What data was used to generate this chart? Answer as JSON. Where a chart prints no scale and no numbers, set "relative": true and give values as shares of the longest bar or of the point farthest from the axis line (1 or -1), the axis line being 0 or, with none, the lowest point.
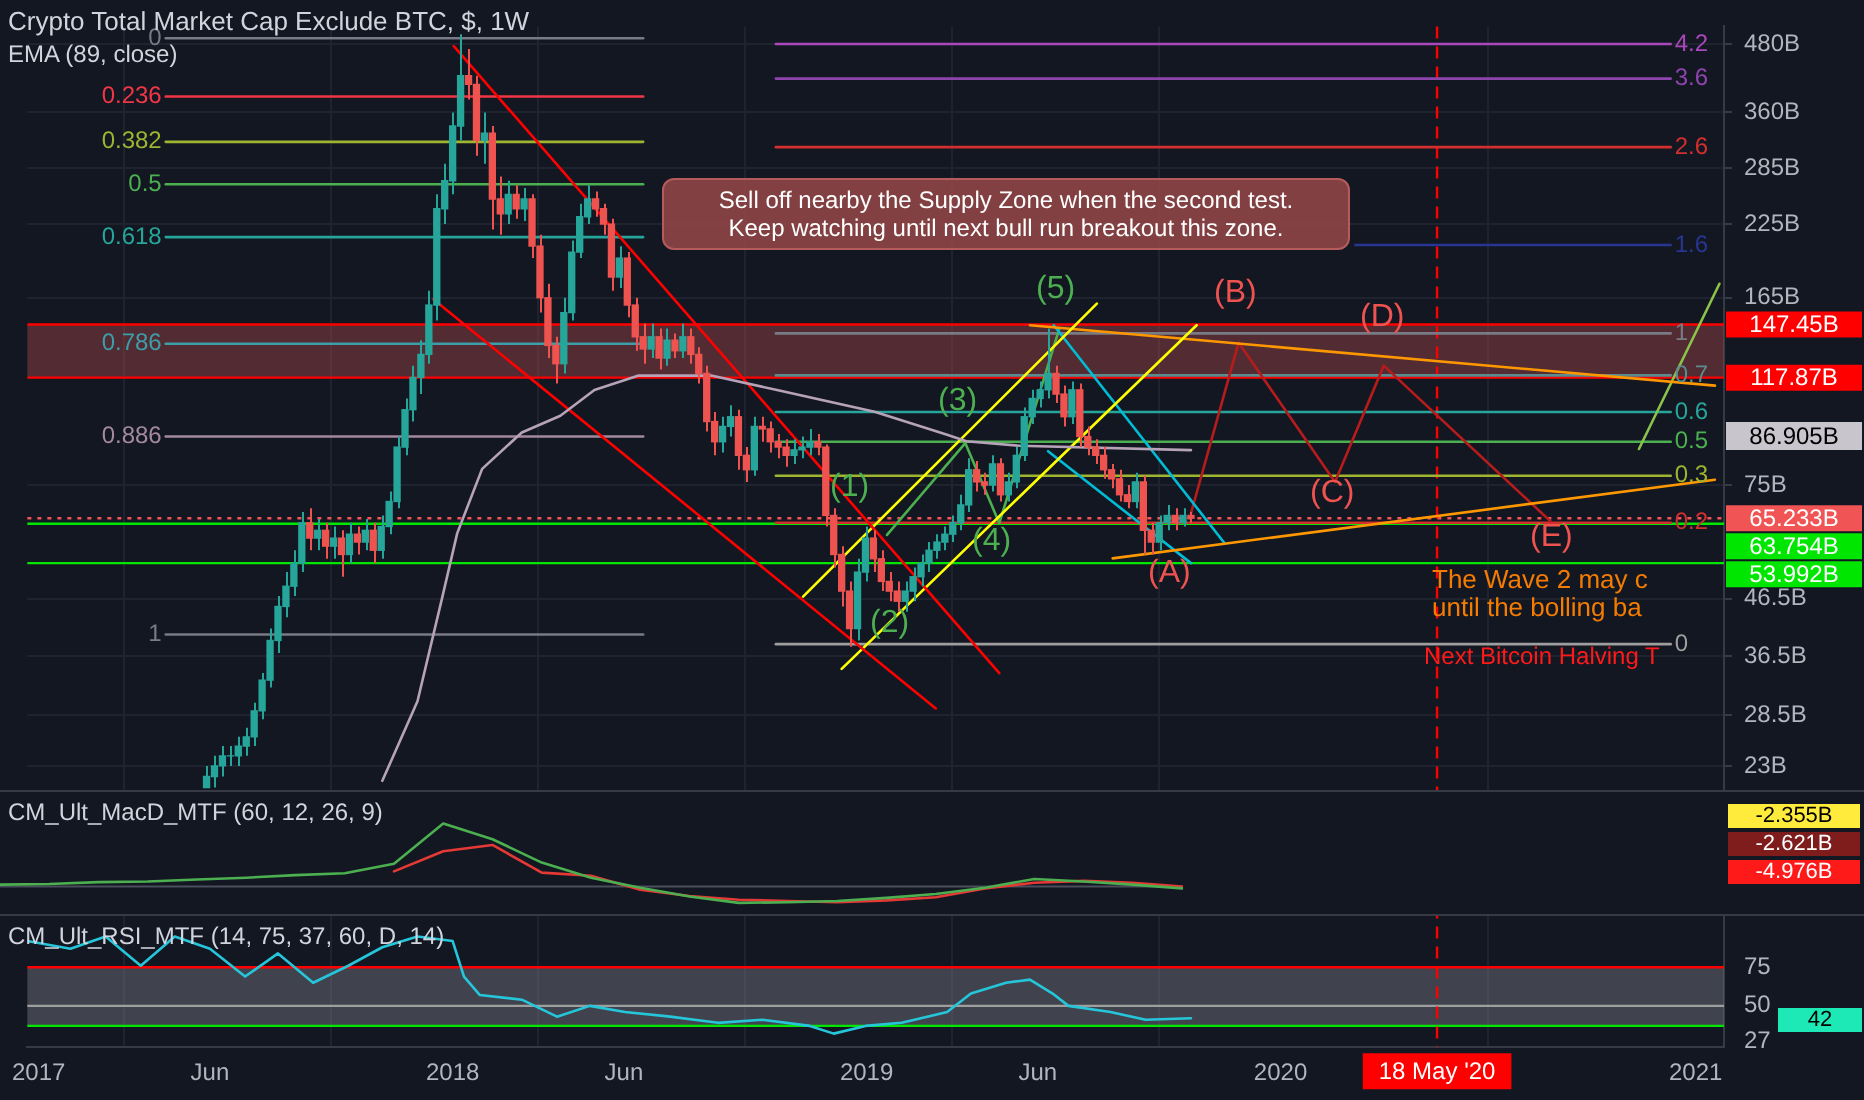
{
  "chart_data": [
    {
      "type": "candlestick",
      "title": "Crypto Total Market Cap Exclude BTC, $, 1W",
      "subtitle": "EMA (89, close)",
      "y2label": "CM_Ult_RSI_MTF (14, 75, 37, 60, D, 14)",
      "log": true,
      "ylim": [
        7.04,
        517
      ],
      "yticks": [
        {
          "value": 23,
          "label": "23B"
        },
        {
          "value": 28.5,
          "label": "28.5B"
        },
        {
          "value": 36.5,
          "label": "36.5B"
        },
        {
          "value": 46.5,
          "label": "46.5B"
        },
        {
          "value": 75,
          "label": "75B"
        },
        {
          "value": 165,
          "label": "165B"
        },
        {
          "value": 225,
          "label": "225B"
        },
        {
          "value": 285,
          "label": "285B"
        },
        {
          "value": 360,
          "label": "360B"
        },
        {
          "value": 480,
          "label": "480B"
        }
      ],
      "y2lim": [
        23.2,
        685
      ],
      "y2ticks": [
        27,
        50,
        75
      ],
      "xlim": [
        "2016-12-22",
        "2021-01-26"
      ],
      "xticks": [
        {
          "value": "2017",
          "label": "2017"
        },
        {
          "value": "2017-06",
          "label": "Jun"
        },
        {
          "value": "2018",
          "label": "2018"
        },
        {
          "value": "2018-06",
          "label": "Jun"
        },
        {
          "value": "2019",
          "label": "2019"
        },
        {
          "value": "2019-06",
          "label": "Jun"
        },
        {
          "value": "2020",
          "label": "2020"
        },
        {
          "value": "2021",
          "label": "2021"
        }
      ],
      "grid": true,
      "x": [
        "2017-05-29",
        "2017-06-05",
        "2017-06-12",
        "2017-06-19",
        "2017-06-26",
        "2017-07-03",
        "2017-07-10",
        "2017-07-17",
        "2017-07-24",
        "2017-07-31",
        "2017-08-07",
        "2017-08-14",
        "2017-08-21",
        "2017-08-28",
        "2017-09-04",
        "2017-09-11",
        "2017-09-18",
        "2017-09-25",
        "2017-10-02",
        "2017-10-09",
        "2017-10-16",
        "2017-10-23",
        "2017-10-30",
        "2017-11-06",
        "2017-11-13",
        "2017-11-20",
        "2017-11-27",
        "2017-12-04",
        "2017-12-11",
        "2017-12-18",
        "2017-12-25",
        "2018-01-01",
        "2018-01-08",
        "2018-01-15",
        "2018-01-22",
        "2018-01-29",
        "2018-02-05",
        "2018-02-12",
        "2018-02-19",
        "2018-02-26",
        "2018-03-05",
        "2018-03-12",
        "2018-03-19",
        "2018-03-26",
        "2018-04-02",
        "2018-04-09",
        "2018-04-16",
        "2018-04-23",
        "2018-04-30",
        "2018-05-07",
        "2018-05-14",
        "2018-05-21",
        "2018-05-28",
        "2018-06-04",
        "2018-06-11",
        "2018-06-18",
        "2018-06-25",
        "2018-07-02",
        "2018-07-09",
        "2018-07-16",
        "2018-07-23",
        "2018-07-30",
        "2018-08-06",
        "2018-08-13",
        "2018-08-20",
        "2018-08-27",
        "2018-09-03",
        "2018-09-10",
        "2018-09-17",
        "2018-09-24",
        "2018-10-01",
        "2018-10-08",
        "2018-10-15",
        "2018-10-22",
        "2018-10-29",
        "2018-11-05",
        "2018-11-12",
        "2018-11-19",
        "2018-11-26",
        "2018-12-03",
        "2018-12-10",
        "2018-12-17",
        "2018-12-24",
        "2018-12-31",
        "2019-01-07",
        "2019-01-14",
        "2019-01-21",
        "2019-01-28",
        "2019-02-04",
        "2019-02-11",
        "2019-02-18",
        "2019-02-25",
        "2019-03-04",
        "2019-03-11",
        "2019-03-18",
        "2019-03-25",
        "2019-04-01",
        "2019-04-08",
        "2019-04-15",
        "2019-04-22",
        "2019-04-29",
        "2019-05-06",
        "2019-05-13",
        "2019-05-20",
        "2019-05-27",
        "2019-06-03",
        "2019-06-10",
        "2019-06-17",
        "2019-06-24",
        "2019-07-01",
        "2019-07-08",
        "2019-07-15",
        "2019-07-22",
        "2019-07-29",
        "2019-08-05",
        "2019-08-12",
        "2019-08-19",
        "2019-08-26",
        "2019-09-02",
        "2019-09-09",
        "2019-09-16",
        "2019-09-23",
        "2019-09-30",
        "2019-10-07",
        "2019-10-14"
      ],
      "ohlc": [
        [
          21,
          23,
          21,
          22
        ],
        [
          22,
          24,
          21,
          23
        ],
        [
          23,
          25,
          22,
          24
        ],
        [
          24,
          25,
          23,
          24
        ],
        [
          24,
          26,
          23,
          25
        ],
        [
          25,
          27,
          24,
          26
        ],
        [
          26,
          30,
          25,
          29
        ],
        [
          29,
          34,
          28,
          33
        ],
        [
          33,
          41,
          32,
          39
        ],
        [
          39,
          47,
          37,
          45
        ],
        [
          45,
          52,
          43,
          49
        ],
        [
          49,
          57,
          47,
          54
        ],
        [
          54,
          67,
          52,
          64
        ],
        [
          64,
          68,
          57,
          60
        ],
        [
          60,
          65,
          57,
          62
        ],
        [
          62,
          64,
          55,
          58
        ],
        [
          58,
          63,
          55,
          60
        ],
        [
          60,
          62,
          51,
          56
        ],
        [
          56,
          64,
          54,
          61
        ],
        [
          61,
          63,
          56,
          59
        ],
        [
          59,
          65,
          57,
          62
        ],
        [
          62,
          64,
          54,
          57
        ],
        [
          57,
          66,
          55,
          63
        ],
        [
          63,
          73,
          61,
          70
        ],
        [
          70,
          92,
          68,
          88
        ],
        [
          88,
          108,
          85,
          103
        ],
        [
          103,
          124,
          98,
          118
        ],
        [
          118,
          138,
          110,
          130
        ],
        [
          130,
          170,
          125,
          160
        ],
        [
          160,
          255,
          150,
          240
        ],
        [
          240,
          290,
          225,
          270
        ],
        [
          270,
          360,
          255,
          340
        ],
        [
          340,
          500,
          320,
          420
        ],
        [
          420,
          470,
          380,
          405
        ],
        [
          405,
          420,
          300,
          320
        ],
        [
          320,
          360,
          290,
          330
        ],
        [
          330,
          340,
          220,
          250
        ],
        [
          250,
          275,
          215,
          235
        ],
        [
          235,
          270,
          225,
          255
        ],
        [
          255,
          265,
          230,
          240
        ],
        [
          240,
          262,
          228,
          250
        ],
        [
          250,
          255,
          195,
          205
        ],
        [
          205,
          215,
          155,
          165
        ],
        [
          165,
          175,
          128,
          135
        ],
        [
          135,
          140,
          115,
          125
        ],
        [
          125,
          165,
          120,
          155
        ],
        [
          155,
          210,
          150,
          200
        ],
        [
          200,
          245,
          195,
          232
        ],
        [
          232,
          265,
          225,
          250
        ],
        [
          250,
          258,
          232,
          240
        ],
        [
          240,
          245,
          215,
          225
        ],
        [
          225,
          230,
          170,
          180
        ],
        [
          180,
          205,
          172,
          195
        ],
        [
          195,
          200,
          152,
          160
        ],
        [
          160,
          165,
          132,
          140
        ],
        [
          140,
          148,
          125,
          133
        ],
        [
          133,
          148,
          128,
          140
        ],
        [
          140,
          145,
          122,
          128
        ],
        [
          128,
          145,
          124,
          138
        ],
        [
          138,
          142,
          128,
          132
        ],
        [
          132,
          148,
          128,
          140
        ],
        [
          140,
          145,
          125,
          130
        ],
        [
          130,
          134,
          115,
          120
        ],
        [
          120,
          124,
          94,
          98
        ],
        [
          98,
          102,
          85,
          90
        ],
        [
          90,
          100,
          86,
          96
        ],
        [
          96,
          105,
          92,
          100
        ],
        [
          100,
          103,
          80,
          85
        ],
        [
          85,
          88,
          76,
          80
        ],
        [
          80,
          100,
          78,
          96
        ],
        [
          96,
          100,
          90,
          95
        ],
        [
          95,
          98,
          86,
          90
        ],
        [
          90,
          93,
          84,
          88
        ],
        [
          88,
          91,
          81,
          85
        ],
        [
          85,
          91,
          82,
          87
        ],
        [
          87,
          92,
          84,
          88
        ],
        [
          88,
          95,
          85,
          90
        ],
        [
          90,
          93,
          85,
          88
        ],
        [
          88,
          89,
          63,
          66
        ],
        [
          66,
          68,
          53,
          56
        ],
        [
          56,
          58,
          45,
          48
        ],
        [
          48,
          50,
          38,
          41
        ],
        [
          41,
          55,
          39,
          52
        ],
        [
          52,
          63,
          50,
          60
        ],
        [
          60,
          62,
          52,
          55
        ],
        [
          55,
          57,
          48,
          50
        ],
        [
          50,
          52,
          46,
          48
        ],
        [
          48,
          50,
          44,
          46
        ],
        [
          46,
          50,
          44,
          48
        ],
        [
          48,
          53,
          46,
          51
        ],
        [
          51,
          56,
          49,
          54
        ],
        [
          54,
          59,
          52,
          57
        ],
        [
          57,
          61,
          55,
          59
        ],
        [
          59,
          63,
          57,
          61
        ],
        [
          61,
          66,
          59,
          64
        ],
        [
          64,
          72,
          62,
          69
        ],
        [
          69,
          84,
          67,
          80
        ],
        [
          80,
          83,
          73,
          76
        ],
        [
          76,
          79,
          72,
          75
        ],
        [
          75,
          85,
          73,
          82
        ],
        [
          82,
          84,
          70,
          72
        ],
        [
          72,
          79,
          70,
          76
        ],
        [
          76,
          88,
          74,
          85
        ],
        [
          85,
          104,
          83,
          100
        ],
        [
          100,
          112,
          97,
          108
        ],
        [
          108,
          116,
          104,
          112
        ],
        [
          112,
          145,
          108,
          120
        ],
        [
          120,
          124,
          106,
          110
        ],
        [
          110,
          114,
          96,
          100
        ],
        [
          100,
          116,
          97,
          112
        ],
        [
          112,
          115,
          88,
          92
        ],
        [
          92,
          96,
          85,
          88
        ],
        [
          88,
          91,
          82,
          85
        ],
        [
          85,
          88,
          77,
          80
        ],
        [
          80,
          82,
          74,
          77
        ],
        [
          77,
          80,
          70,
          72
        ],
        [
          72,
          75,
          68,
          70
        ],
        [
          70,
          79,
          68,
          76
        ],
        [
          76,
          78,
          56,
          62
        ],
        [
          62,
          64,
          56,
          59
        ],
        [
          59,
          66,
          57,
          64
        ],
        [
          64,
          69,
          62,
          66
        ],
        [
          66,
          68,
          62,
          64
        ],
        [
          64,
          68,
          63,
          66
        ],
        [
          66,
          67,
          64,
          65.233
        ]
      ],
      "series": [
        {
          "type": "line",
          "color": "#b7a3b8",
          "x": [
            "2017-10-31",
            "2017-12-01",
            "2017-12-23",
            "2018-01-05",
            "2018-01-27",
            "2018-03-03",
            "2018-04-06",
            "2018-05-06",
            "2018-06-14",
            "2018-08-17",
            "2018-10-14",
            "2019-01-08",
            "2019-03-13",
            "2019-03-30",
            "2019-05-16",
            "2019-10-14"
          ],
          "values": [
            21.6,
            30.2,
            46.9,
            61.2,
            80.3,
            93.6,
            100.4,
            111.9,
            118.9,
            118.9,
            111.9,
            102.1,
            92.7,
            90.2,
            88.5,
            86.905
          ]
        },
        {
          "type": "line",
          "color": "#ff0000",
          "x": [
            "2018-01-02",
            "2019-04-28"
          ],
          "values": [
            476,
            34
          ]
        },
        {
          "type": "line",
          "color": "#ff0000",
          "x": [
            "2017-12-15",
            "2019-03-03"
          ],
          "values": [
            164,
            29.3
          ]
        },
        {
          "type": "line",
          "color": "#ffff00",
          "x": [
            "2018-11-06",
            "2019-07-23"
          ],
          "values": [
            46.9,
            161
          ]
        },
        {
          "type": "line",
          "color": "#ffff00",
          "x": [
            "2018-12-10",
            "2019-10-19"
          ],
          "values": [
            34.6,
            147
          ]
        },
        {
          "type": "line",
          "color": "#ff9800",
          "x": [
            "2019-05-25",
            "2021-01-18"
          ],
          "values": [
            147,
            114
          ]
        },
        {
          "type": "line",
          "color": "#ff9800",
          "x": [
            "2019-08-06",
            "2021-01-18"
          ],
          "values": [
            55.1,
            76.7
          ]
        },
        {
          "type": "line",
          "color": "#00bcd4",
          "x": [
            "2019-06-15",
            "2019-11-13"
          ],
          "values": [
            147,
            58.6
          ]
        },
        {
          "type": "line",
          "color": "#00bcd4",
          "x": [
            "2019-06-10",
            "2019-10-14"
          ],
          "values": [
            86.5,
            54
          ]
        },
        {
          "type": "line",
          "color": "#4caf50",
          "x": [
            "2019-01-19",
            "2019-03-29",
            "2019-04-28",
            "2019-06-20"
          ],
          "values": [
            60.8,
            89.5,
            63.9,
            145
          ]
        },
        {
          "type": "line",
          "color": "#b71c1c",
          "x": [
            "2019-10-14",
            "2019-11-25",
            "2020-02-18",
            "2020-04-01",
            "2020-08-26"
          ],
          "values": [
            66.6,
            136.6,
            76,
            124,
            64.4
          ]
        },
        {
          "type": "line",
          "color": "#8bc34a",
          "x": [
            "2020-11-12",
            "2021-01-22"
          ],
          "values": [
            87.3,
            175
          ]
        },
        {
          "type": "line",
          "name": "0",
          "color": "#787b86",
          "x": [
            "2017-04-23",
            "2018-06-18"
          ],
          "values": [
            492,
            492
          ]
        },
        {
          "type": "line",
          "name": "0.236",
          "color": "#f23645",
          "x": [
            "2017-04-23",
            "2018-06-18"
          ],
          "values": [
            385,
            385
          ]
        },
        {
          "type": "line",
          "name": "0.382",
          "color": "#9fb530",
          "x": [
            "2017-04-23",
            "2018-06-18"
          ],
          "values": [
            318,
            318
          ]
        },
        {
          "type": "line",
          "name": "0.5",
          "color": "#4caf50",
          "x": [
            "2017-04-23",
            "2018-06-18"
          ],
          "values": [
            266,
            266
          ]
        },
        {
          "type": "line",
          "name": "0.618",
          "color": "#26a69a",
          "x": [
            "2017-04-23",
            "2018-06-18"
          ],
          "values": [
            213,
            213
          ]
        },
        {
          "type": "line",
          "name": "0.786",
          "color": "#3d9da8",
          "x": [
            "2017-04-23",
            "2018-06-18"
          ],
          "values": [
            136,
            136
          ]
        },
        {
          "type": "line",
          "name": "0.886",
          "color": "#a3899f",
          "x": [
            "2017-04-23",
            "2018-06-18"
          ],
          "values": [
            92,
            92
          ]
        },
        {
          "type": "line",
          "name": "1",
          "color": "#787b86",
          "x": [
            "2017-04-23",
            "2018-06-18"
          ],
          "values": [
            40,
            40
          ]
        },
        {
          "type": "line",
          "name": "4.2",
          "color": "#ab47bc",
          "x": [
            "2018-10-13",
            "2020-12-10"
          ],
          "values": [
            480,
            480
          ]
        },
        {
          "type": "line",
          "name": "3.6",
          "color": "#8e44ad",
          "x": [
            "2018-10-13",
            "2020-12-10"
          ],
          "values": [
            415,
            415
          ]
        },
        {
          "type": "line",
          "name": "2.6",
          "color": "#d32f2f",
          "x": [
            "2018-10-13",
            "2020-12-10"
          ],
          "values": [
            311,
            311
          ]
        },
        {
          "type": "line",
          "name": "1.6",
          "color": "#283593",
          "x": [
            "2020-03-07",
            "2020-12-10"
          ],
          "values": [
            206,
            206
          ]
        },
        {
          "type": "line",
          "name": "1",
          "color": "#787b86",
          "x": [
            "2018-10-13",
            "2020-12-10"
          ],
          "values": [
            142,
            142
          ]
        },
        {
          "type": "line",
          "name": "0.7",
          "color": "#5d8a8f",
          "x": [
            "2018-10-13",
            "2020-12-10"
          ],
          "values": [
            119,
            119
          ]
        },
        {
          "type": "line",
          "name": "0.6",
          "color": "#26a69a",
          "x": [
            "2018-10-13",
            "2020-12-10"
          ],
          "values": [
            102,
            102
          ]
        },
        {
          "type": "line",
          "name": "0.5",
          "color": "#4caf50",
          "x": [
            "2018-10-13",
            "2020-12-10"
          ],
          "values": [
            90,
            90
          ]
        },
        {
          "type": "line",
          "name": "0.3",
          "color": "#9fb530",
          "x": [
            "2018-10-13",
            "2020-12-10"
          ],
          "values": [
            78,
            78
          ]
        },
        {
          "type": "line",
          "name": "0.2",
          "color": "#d32f2f",
          "x": [
            "2018-10-13",
            "2020-12-10"
          ],
          "values": [
            64,
            64
          ]
        },
        {
          "type": "line",
          "name": "0",
          "color": "#9e9e9e",
          "x": [
            "2018-10-13",
            "2020-12-10"
          ],
          "values": [
            38.4,
            38.4
          ]
        },
        {
          "type": "line",
          "axis": "y2",
          "color": "#26c6da",
          "x": [
            "2016-12-22",
            "2017-01-29",
            "2017-03-01",
            "2017-04-01",
            "2017-05-01",
            "2017-06-01",
            "2017-07-02",
            "2017-07-31",
            "2017-08-31",
            "2017-10-01",
            "2017-10-31",
            "2017-12-01",
            "2018-01-01",
            "2018-01-11",
            "2018-01-25",
            "2018-03-03",
            "2018-04-03",
            "2018-05-02",
            "2018-06-02",
            "2018-07-12",
            "2018-08-23",
            "2018-10-01",
            "2018-11-12",
            "2018-12-03",
            "2018-12-31",
            "2019-02-01",
            "2019-03-13",
            "2019-04-03",
            "2019-05-04",
            "2019-05-25",
            "2019-06-14",
            "2019-06-28",
            "2019-08-04",
            "2019-09-04",
            "2019-10-14"
          ],
          "values": [
            92,
            87,
            95,
            76,
            95,
            87,
            69,
            84,
            65,
            76,
            88,
            95,
            92,
            69,
            57,
            54,
            43,
            50,
            46,
            43,
            39,
            41,
            37,
            32,
            37,
            39,
            46,
            58,
            65,
            67,
            58,
            50,
            46,
            41,
            42
          ]
        }
      ],
      "bands": [
        {
          "axis": "y",
          "from": 117.87,
          "to": 147.45,
          "color": "#a04848"
        },
        {
          "axis": "y2",
          "from": 37,
          "to": 75,
          "color": "#787b86"
        }
      ],
      "ref_lines": [
        {
          "axis": "y",
          "value": 147.45,
          "label": "147.45B",
          "color": "#ff0000"
        },
        {
          "axis": "y",
          "value": 117.87,
          "label": "117.87B",
          "color": "#ff0000"
        },
        {
          "axis": "y",
          "value": 65.233,
          "label": "65.233B",
          "color": "#f05454",
          "line_style": "dotted"
        },
        {
          "axis": "y",
          "value": 63.754,
          "label": "63.754B",
          "color": "#00e600"
        },
        {
          "axis": "y",
          "value": 53.992,
          "label": "53.992B",
          "color": "#00e600"
        },
        {
          "axis": "y2",
          "value": 75,
          "color": "#ff0000"
        },
        {
          "axis": "y2",
          "value": 50,
          "color": "#9e9e9e"
        },
        {
          "axis": "y2",
          "value": 37,
          "color": "#00e600"
        },
        {
          "axis": "x",
          "value": "2020-05-18",
          "label": "18 May '20",
          "color": "#ff0000",
          "line_style": "dashed"
        }
      ],
      "annotations": [
        "(1)",
        "(2)",
        "(3)",
        "(4)",
        "(5)",
        "(A)",
        "(B)",
        "(C)",
        "(D)",
        "(E)",
        "Sell off nearby the Supply Zone when the second test.\nKeep watching until next bull run breakout this zone.",
        "The Wave 2 may c\nuntil the bolling ba",
        "Next Bitcoin Halving T",
        "86.905B",
        "42"
      ]
    },
    {
      "type": "line",
      "title": "CM_Ult_MacD_MTF (60, 12, 26, 9)",
      "relative": true,
      "categories": [
        null,
        null,
        null,
        null,
        null,
        null,
        null,
        null,
        null,
        null,
        null,
        null,
        null,
        null,
        null,
        null,
        null,
        null,
        null,
        null,
        null,
        null,
        null,
        null,
        null
      ],
      "series": [
        {
          "color": "#4caf50",
          "values": [
            0.03,
            0.04,
            0.07,
            0.08,
            0.11,
            0.14,
            0.18,
            0.21,
            0.36,
            1,
            0.75,
            0.38,
            0.14,
            -0.02,
            -0.16,
            -0.26,
            -0.25,
            -0.23,
            -0.18,
            -0.12,
            -0.02,
            0.12,
            0.08,
            0.03,
            -0.03
          ]
        },
        {
          "color": "#e53935",
          "values": [
            null,
            null,
            null,
            null,
            null,
            null,
            null,
            null,
            0.24,
            0.56,
            0.66,
            0.22,
            0.17,
            -0.05,
            -0.15,
            -0.21,
            -0.23,
            -0.25,
            -0.22,
            -0.17,
            -0.03,
            0.06,
            0.09,
            0.06,
            0
          ]
        }
      ],
      "annotations": [
        "-2.355B",
        "-2.621B",
        "-4.976B"
      ]
    }
  ]
}
